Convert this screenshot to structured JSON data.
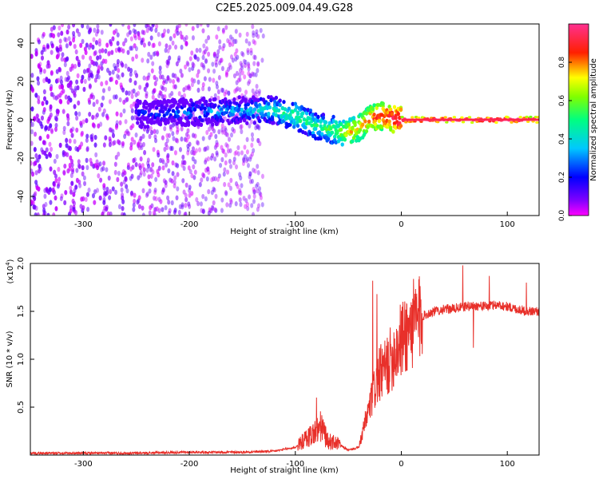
{
  "figure": {
    "title": "C2E5.2025.009.04.49.G28",
    "colors": {
      "snr_line": "#e8302a",
      "axis": "#000000",
      "background": "#ffffff"
    }
  },
  "chart_data": [
    {
      "type": "heatmap",
      "title": "C2E5.2025.009.04.49.G28",
      "xlabel": "Height of straight line (km)",
      "ylabel": "Frequency (Hz)",
      "xlim": [
        -350,
        130
      ],
      "ylim": [
        -50,
        50
      ],
      "x_ticks": [
        -300,
        -200,
        -100,
        0,
        100
      ],
      "y_ticks": [
        -40,
        -20,
        0,
        20,
        40
      ],
      "grid": false,
      "colorbar": {
        "label": "Normalized spectral amplitude",
        "range": [
          0,
          1
        ],
        "ticks": [
          0.0,
          0.2,
          0.4,
          0.6,
          0.8
        ],
        "colormap": "rainbow (magenta-blue-cyan-green-yellow-red-pink)",
        "position": "right"
      },
      "ridge": {
        "x": [
          -250,
          -200,
          -150,
          -120,
          -100,
          -80,
          -60,
          -50,
          -40,
          -30,
          -20,
          -10,
          0,
          50,
          100,
          130
        ],
        "y": [
          3,
          4,
          5,
          5,
          2,
          -3,
          -6,
          -7,
          -4,
          0,
          2,
          1,
          0,
          0,
          0,
          0
        ],
        "amplitude": [
          0.2,
          0.3,
          0.35,
          0.45,
          0.55,
          0.5,
          0.6,
          0.75,
          0.75,
          0.85,
          0.9,
          0.95,
          1.0,
          1.0,
          1.0,
          1.0
        ]
      },
      "noise_region": {
        "x_range": [
          -350,
          -130
        ],
        "y_range": [
          -50,
          50
        ],
        "amplitude": [
          0.0,
          0.25
        ]
      }
    },
    {
      "type": "line",
      "xlabel": "Height of straight line (km)",
      "ylabel": "SNR (10 * v/v)",
      "y_multiplier_label": "(x10^4)",
      "y_multiplier": "(x10",
      "y_multiplier_exp": "4",
      "xlim": [
        -350,
        130
      ],
      "ylim": [
        0,
        2.0
      ],
      "x_ticks": [
        -300,
        -200,
        -100,
        0,
        100
      ],
      "y_ticks": [
        0.5,
        1.0,
        1.5,
        2.0
      ],
      "y_tick_labels": [
        "0.5",
        "1.0",
        "1.5",
        "2.0"
      ],
      "grid": false,
      "series": [
        {
          "x": [
            -350,
            -300,
            -250,
            -200,
            -150,
            -120,
            -100,
            -90,
            -80,
            -75,
            -70,
            -60,
            -50,
            -40,
            -35,
            -30,
            -25,
            -20,
            -15,
            -10,
            -5,
            0,
            10,
            20,
            30,
            40,
            50,
            60,
            70,
            80,
            90,
            100,
            110,
            120,
            130
          ],
          "values": [
            0.02,
            0.02,
            0.02,
            0.03,
            0.03,
            0.04,
            0.08,
            0.17,
            0.25,
            0.3,
            0.15,
            0.12,
            0.05,
            0.08,
            0.3,
            0.5,
            0.7,
            0.85,
            0.9,
            1.0,
            1.1,
            1.2,
            1.35,
            1.45,
            1.5,
            1.52,
            1.53,
            1.55,
            1.56,
            1.55,
            1.57,
            1.55,
            1.52,
            1.5,
            1.5
          ],
          "spikes": [
            {
              "x": -80,
              "y": 0.6
            },
            {
              "x": -27,
              "y": 1.82
            },
            {
              "x": -23,
              "y": 1.68
            },
            {
              "x": 58,
              "y": 1.98
            },
            {
              "x": 68,
              "y": 1.12
            },
            {
              "x": 83,
              "y": 1.87
            },
            {
              "x": 118,
              "y": 1.8
            }
          ]
        }
      ]
    }
  ]
}
